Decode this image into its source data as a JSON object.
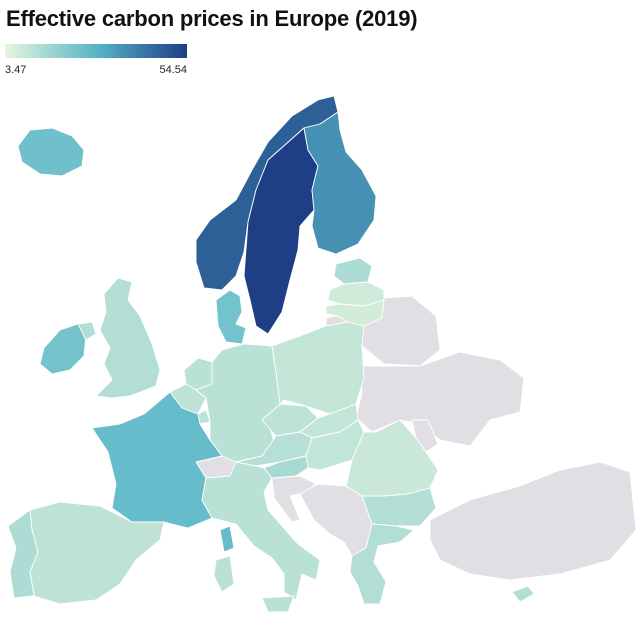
{
  "title": "Effective carbon prices in Europe (2019)",
  "legend": {
    "min_label": "3.47",
    "max_label": "54.54",
    "min": 3.47,
    "max": 54.54,
    "color_low": "#e6f5dc",
    "color_mid": "#58b6c8",
    "color_high": "#1e3e86"
  },
  "no_data_color": "#e1dfe3",
  "countries": [
    {
      "id": "iceland",
      "level": 0.42
    },
    {
      "id": "norway",
      "level": 0.86
    },
    {
      "id": "sweden",
      "level": 1.0
    },
    {
      "id": "finland",
      "level": 0.66
    },
    {
      "id": "estonia",
      "level": 0.2
    },
    {
      "id": "latvia",
      "level": 0.08
    },
    {
      "id": "lithuania",
      "level": 0.07
    },
    {
      "id": "denmark",
      "level": 0.4
    },
    {
      "id": "ireland",
      "level": 0.4
    },
    {
      "id": "northern-ireland",
      "level": 0.18
    },
    {
      "id": "uk",
      "level": 0.18
    },
    {
      "id": "netherlands",
      "level": 0.16
    },
    {
      "id": "belgium",
      "level": 0.14
    },
    {
      "id": "luxembourg",
      "level": 0.15
    },
    {
      "id": "germany",
      "level": 0.16
    },
    {
      "id": "poland",
      "level": 0.12
    },
    {
      "id": "czechia",
      "level": 0.14
    },
    {
      "id": "slovakia",
      "level": 0.13
    },
    {
      "id": "austria",
      "level": 0.17
    },
    {
      "id": "switzerland",
      "level": null
    },
    {
      "id": "france",
      "level": 0.45
    },
    {
      "id": "spain",
      "level": 0.14
    },
    {
      "id": "portugal",
      "level": 0.2
    },
    {
      "id": "italy",
      "level": 0.16
    },
    {
      "id": "sardinia",
      "level": 0.16
    },
    {
      "id": "corsica",
      "level": 0.45
    },
    {
      "id": "sicily",
      "level": 0.16
    },
    {
      "id": "slovenia",
      "level": 0.22
    },
    {
      "id": "croatia",
      "level": null
    },
    {
      "id": "hungary",
      "level": 0.13
    },
    {
      "id": "romania",
      "level": 0.1
    },
    {
      "id": "bulgaria",
      "level": 0.18
    },
    {
      "id": "greece",
      "level": 0.18
    },
    {
      "id": "cyprus",
      "level": 0.18
    },
    {
      "id": "balkans",
      "level": null
    },
    {
      "id": "belarus",
      "level": null
    },
    {
      "id": "ukraine",
      "level": null
    },
    {
      "id": "moldova",
      "level": null
    },
    {
      "id": "turkey",
      "level": null
    },
    {
      "id": "russia-kaliningrad",
      "level": null
    }
  ]
}
